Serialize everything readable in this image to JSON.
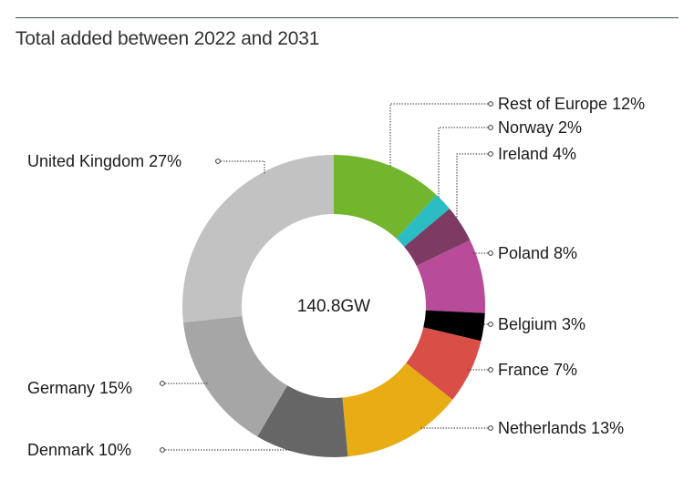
{
  "header": {
    "subtitle": "Total added between 2022 and 2031"
  },
  "chart_data": {
    "type": "pie",
    "donut": true,
    "center_label": "140.8GW",
    "slices": [
      {
        "label": "Rest of Europe 12%",
        "name": "Rest of Europe",
        "value": 12,
        "color": "#72b62e"
      },
      {
        "label": "Norway 2%",
        "name": "Norway",
        "value": 2,
        "color": "#2bbcc4"
      },
      {
        "label": "Ireland 4%",
        "name": "Ireland",
        "value": 4,
        "color": "#7d3a63"
      },
      {
        "label": "Poland 8%",
        "name": "Poland",
        "value": 8,
        "color": "#b84b9a"
      },
      {
        "label": "Belgium 3%",
        "name": "Belgium",
        "value": 3,
        "color": "#000000"
      },
      {
        "label": "France 7%",
        "name": "France",
        "value": 7,
        "color": "#d94f47"
      },
      {
        "label": "Netherlands 13%",
        "name": "Netherlands",
        "value": 13,
        "color": "#e8ad15"
      },
      {
        "label": "Denmark 10%",
        "name": "Denmark",
        "value": 10,
        "color": "#666666"
      },
      {
        "label": "Germany 15%",
        "name": "Germany",
        "value": 15,
        "color": "#a6a6a6"
      },
      {
        "label": "United Kingdom 27%",
        "name": "United Kingdom",
        "value": 27,
        "color": "#c2c2c2"
      }
    ]
  }
}
